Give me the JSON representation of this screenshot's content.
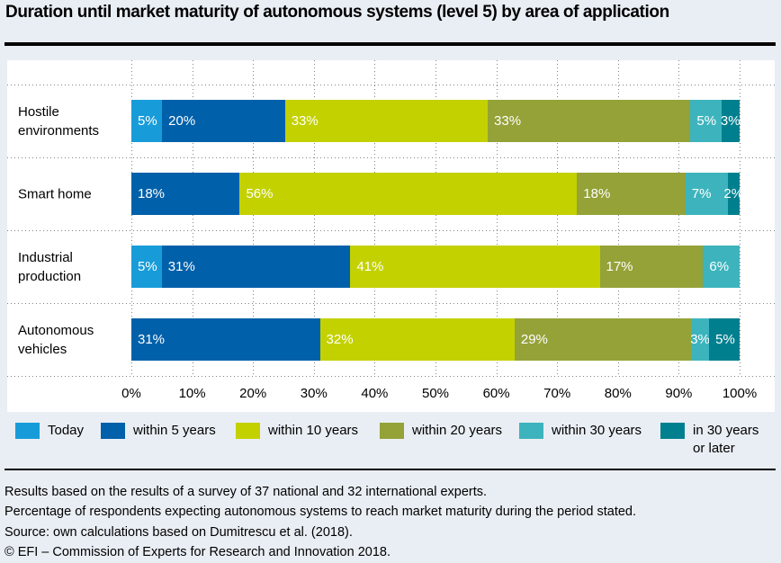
{
  "title": "Duration until market maturity of autonomous systems (level 5) by area of application",
  "chart_data": {
    "type": "bar",
    "variant": "stacked-horizontal",
    "categories": [
      "Hostile environments",
      "Smart home",
      "Industrial production",
      "Autonomous vehicles"
    ],
    "category_label_lines": [
      [
        "Hostile",
        "environments"
      ],
      [
        "Smart home"
      ],
      [
        "Industrial",
        "production"
      ],
      [
        "Autonomous",
        "vehicles"
      ]
    ],
    "series": [
      {
        "name": "Today",
        "color": "#189cd9",
        "values": [
          5,
          0,
          5,
          0
        ]
      },
      {
        "name": "within 5 years",
        "color": "#0060aa",
        "values": [
          20,
          18,
          31,
          31
        ]
      },
      {
        "name": "within 10 years",
        "color": "#c3d100",
        "values": [
          33,
          56,
          41,
          32
        ]
      },
      {
        "name": "within 20 years",
        "color": "#94a238",
        "values": [
          33,
          18,
          17,
          29
        ]
      },
      {
        "name": "within 30 years",
        "color": "#3db4bd",
        "values": [
          5,
          7,
          6,
          3
        ]
      },
      {
        "name": "in 30 years or later",
        "color": "#00808f",
        "values": [
          3,
          2,
          0,
          5
        ]
      }
    ],
    "x_ticks": [
      "0%",
      "10%",
      "20%",
      "30%",
      "40%",
      "50%",
      "60%",
      "70%",
      "80%",
      "90%",
      "100%"
    ],
    "xlim": [
      0,
      100
    ],
    "value_label_suffix": "%",
    "grid": "dotted vertical gridlines every 10%, dotted horizontal row separators",
    "legend_position": "bottom"
  },
  "footnotes": [
    "Results based on the results of a survey of 37 national and 32 international experts.",
    "Percentage of respondents expecting autonomous systems to reach market maturity during the period stated.",
    "Source: own calculations based on Dumitrescu et al. (2018).",
    "© EFI – Commission of Experts for Research and Innovation 2018."
  ],
  "colors": {
    "background": "#e9eef4",
    "panel": "#ffffff",
    "grid_dots": "#7f868c",
    "rule": "#000000",
    "bar_label_text": "#ffffff"
  }
}
